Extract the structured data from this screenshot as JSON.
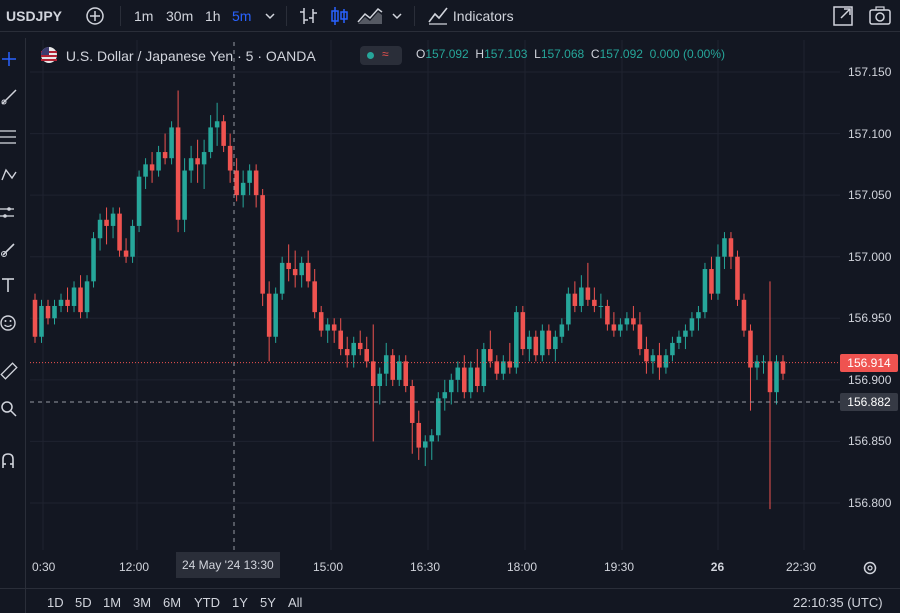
{
  "toolbar": {
    "symbol": "USDJPY",
    "intervals": [
      "1m",
      "30m",
      "1h",
      "5m"
    ],
    "active_interval": "5m",
    "indicators_label": "Indicators"
  },
  "legend": {
    "title": "U.S. Dollar / Japanese Yen · 5 · OANDA",
    "ohlc": {
      "O": "157.092",
      "H": "157.103",
      "L": "157.068",
      "C": "157.092",
      "change": "0.000 (0.00%)"
    }
  },
  "price_axis": {
    "labels": [
      "157.150",
      "157.100",
      "157.050",
      "157.000",
      "156.950",
      "156.900",
      "156.850",
      "156.800"
    ],
    "last_price": "156.914",
    "crosshair_price": "156.882"
  },
  "time_axis": {
    "labels": [
      "0:30",
      "12:00",
      "15:00",
      "16:30",
      "18:00",
      "19:30",
      "26",
      "22:30"
    ],
    "crosshair_label": "24 May '24  13:30"
  },
  "bottom": {
    "ranges": [
      "1D",
      "5D",
      "1M",
      "3M",
      "6M",
      "YTD",
      "1Y",
      "5Y",
      "All"
    ],
    "clock": "22:10:35 (UTC)"
  },
  "colors": {
    "up": "#26a69a",
    "down": "#ef5350",
    "bg": "#131722",
    "grid": "#1f2330",
    "accent": "#2962ff"
  },
  "chart_data": {
    "type": "candlestick",
    "title": "U.S. Dollar / Japanese Yen · 5 · OANDA",
    "ylim": [
      156.78,
      157.17
    ],
    "candles": [
      {
        "o": 156.965,
        "h": 156.97,
        "l": 156.93,
        "c": 156.935
      },
      {
        "o": 156.935,
        "h": 156.965,
        "l": 156.93,
        "c": 156.96
      },
      {
        "o": 156.96,
        "h": 156.965,
        "l": 156.945,
        "c": 156.95
      },
      {
        "o": 156.95,
        "h": 156.965,
        "l": 156.945,
        "c": 156.96
      },
      {
        "o": 156.96,
        "h": 156.97,
        "l": 156.955,
        "c": 156.965
      },
      {
        "o": 156.965,
        "h": 156.975,
        "l": 156.955,
        "c": 156.96
      },
      {
        "o": 156.96,
        "h": 156.98,
        "l": 156.955,
        "c": 156.975
      },
      {
        "o": 156.975,
        "h": 156.985,
        "l": 156.95,
        "c": 156.955
      },
      {
        "o": 156.955,
        "h": 156.985,
        "l": 156.95,
        "c": 156.98
      },
      {
        "o": 156.98,
        "h": 157.02,
        "l": 156.975,
        "c": 157.015
      },
      {
        "o": 157.015,
        "h": 157.035,
        "l": 157.005,
        "c": 157.03
      },
      {
        "o": 157.03,
        "h": 157.04,
        "l": 157.01,
        "c": 157.025
      },
      {
        "o": 157.025,
        "h": 157.04,
        "l": 157.015,
        "c": 157.035
      },
      {
        "o": 157.035,
        "h": 157.04,
        "l": 157.0,
        "c": 157.005
      },
      {
        "o": 157.005,
        "h": 157.015,
        "l": 156.995,
        "c": 157.0
      },
      {
        "o": 157.0,
        "h": 157.03,
        "l": 156.995,
        "c": 157.025
      },
      {
        "o": 157.025,
        "h": 157.07,
        "l": 157.02,
        "c": 157.065
      },
      {
        "o": 157.065,
        "h": 157.08,
        "l": 157.055,
        "c": 157.075
      },
      {
        "o": 157.075,
        "h": 157.085,
        "l": 157.06,
        "c": 157.07
      },
      {
        "o": 157.07,
        "h": 157.09,
        "l": 157.065,
        "c": 157.085
      },
      {
        "o": 157.085,
        "h": 157.1,
        "l": 157.075,
        "c": 157.08
      },
      {
        "o": 157.08,
        "h": 157.11,
        "l": 157.075,
        "c": 157.105
      },
      {
        "o": 157.105,
        "h": 157.135,
        "l": 157.02,
        "c": 157.03
      },
      {
        "o": 157.03,
        "h": 157.08,
        "l": 157.02,
        "c": 157.07
      },
      {
        "o": 157.07,
        "h": 157.09,
        "l": 157.06,
        "c": 157.08
      },
      {
        "o": 157.08,
        "h": 157.095,
        "l": 157.06,
        "c": 157.075
      },
      {
        "o": 157.075,
        "h": 157.095,
        "l": 157.055,
        "c": 157.085
      },
      {
        "o": 157.085,
        "h": 157.115,
        "l": 157.08,
        "c": 157.105
      },
      {
        "o": 157.105,
        "h": 157.125,
        "l": 157.09,
        "c": 157.11
      },
      {
        "o": 157.11,
        "h": 157.115,
        "l": 157.085,
        "c": 157.09
      },
      {
        "o": 157.09,
        "h": 157.1,
        "l": 157.06,
        "c": 157.07
      },
      {
        "o": 157.07,
        "h": 157.08,
        "l": 157.045,
        "c": 157.05
      },
      {
        "o": 157.05,
        "h": 157.07,
        "l": 157.04,
        "c": 157.06
      },
      {
        "o": 157.06,
        "h": 157.075,
        "l": 157.05,
        "c": 157.07
      },
      {
        "o": 157.07,
        "h": 157.075,
        "l": 157.04,
        "c": 157.05
      },
      {
        "o": 157.05,
        "h": 157.055,
        "l": 156.96,
        "c": 156.97
      },
      {
        "o": 156.97,
        "h": 156.98,
        "l": 156.915,
        "c": 156.935
      },
      {
        "o": 156.935,
        "h": 156.975,
        "l": 156.93,
        "c": 156.97
      },
      {
        "o": 156.97,
        "h": 157.0,
        "l": 156.965,
        "c": 156.995
      },
      {
        "o": 156.995,
        "h": 157.01,
        "l": 156.98,
        "c": 156.99
      },
      {
        "o": 156.99,
        "h": 157.005,
        "l": 156.975,
        "c": 156.985
      },
      {
        "o": 156.985,
        "h": 157.0,
        "l": 156.975,
        "c": 156.995
      },
      {
        "o": 156.995,
        "h": 157.005,
        "l": 156.975,
        "c": 156.98
      },
      {
        "o": 156.98,
        "h": 156.99,
        "l": 156.95,
        "c": 156.955
      },
      {
        "o": 156.955,
        "h": 156.96,
        "l": 156.935,
        "c": 156.94
      },
      {
        "o": 156.94,
        "h": 156.95,
        "l": 156.93,
        "c": 156.945
      },
      {
        "o": 156.945,
        "h": 156.95,
        "l": 156.93,
        "c": 156.94
      },
      {
        "o": 156.94,
        "h": 156.95,
        "l": 156.92,
        "c": 156.925
      },
      {
        "o": 156.925,
        "h": 156.935,
        "l": 156.91,
        "c": 156.92
      },
      {
        "o": 156.92,
        "h": 156.935,
        "l": 156.91,
        "c": 156.93
      },
      {
        "o": 156.93,
        "h": 156.94,
        "l": 156.92,
        "c": 156.925
      },
      {
        "o": 156.925,
        "h": 156.935,
        "l": 156.91,
        "c": 156.915
      },
      {
        "o": 156.915,
        "h": 156.945,
        "l": 156.85,
        "c": 156.895
      },
      {
        "o": 156.895,
        "h": 156.91,
        "l": 156.88,
        "c": 156.905
      },
      {
        "o": 156.905,
        "h": 156.93,
        "l": 156.895,
        "c": 156.92
      },
      {
        "o": 156.92,
        "h": 156.925,
        "l": 156.895,
        "c": 156.9
      },
      {
        "o": 156.9,
        "h": 156.92,
        "l": 156.895,
        "c": 156.915
      },
      {
        "o": 156.915,
        "h": 156.92,
        "l": 156.89,
        "c": 156.895
      },
      {
        "o": 156.895,
        "h": 156.9,
        "l": 156.84,
        "c": 156.865
      },
      {
        "o": 156.865,
        "h": 156.875,
        "l": 156.835,
        "c": 156.845
      },
      {
        "o": 156.845,
        "h": 156.855,
        "l": 156.83,
        "c": 156.85
      },
      {
        "o": 156.85,
        "h": 156.86,
        "l": 156.835,
        "c": 156.855
      },
      {
        "o": 156.855,
        "h": 156.89,
        "l": 156.85,
        "c": 156.885
      },
      {
        "o": 156.885,
        "h": 156.9,
        "l": 156.875,
        "c": 156.89
      },
      {
        "o": 156.89,
        "h": 156.905,
        "l": 156.88,
        "c": 156.9
      },
      {
        "o": 156.9,
        "h": 156.915,
        "l": 156.89,
        "c": 156.91
      },
      {
        "o": 156.91,
        "h": 156.92,
        "l": 156.885,
        "c": 156.89
      },
      {
        "o": 156.89,
        "h": 156.915,
        "l": 156.885,
        "c": 156.91
      },
      {
        "o": 156.91,
        "h": 156.925,
        "l": 156.89,
        "c": 156.895
      },
      {
        "o": 156.895,
        "h": 156.93,
        "l": 156.89,
        "c": 156.925
      },
      {
        "o": 156.925,
        "h": 156.94,
        "l": 156.91,
        "c": 156.915
      },
      {
        "o": 156.915,
        "h": 156.92,
        "l": 156.9,
        "c": 156.905
      },
      {
        "o": 156.905,
        "h": 156.92,
        "l": 156.9,
        "c": 156.915
      },
      {
        "o": 156.915,
        "h": 156.93,
        "l": 156.905,
        "c": 156.91
      },
      {
        "o": 156.91,
        "h": 156.96,
        "l": 156.905,
        "c": 156.955
      },
      {
        "o": 156.955,
        "h": 156.96,
        "l": 156.92,
        "c": 156.925
      },
      {
        "o": 156.925,
        "h": 156.94,
        "l": 156.915,
        "c": 156.935
      },
      {
        "o": 156.935,
        "h": 156.94,
        "l": 156.915,
        "c": 156.92
      },
      {
        "o": 156.92,
        "h": 156.945,
        "l": 156.915,
        "c": 156.94
      },
      {
        "o": 156.94,
        "h": 156.945,
        "l": 156.92,
        "c": 156.925
      },
      {
        "o": 156.925,
        "h": 156.94,
        "l": 156.915,
        "c": 156.935
      },
      {
        "o": 156.935,
        "h": 156.95,
        "l": 156.93,
        "c": 156.945
      },
      {
        "o": 156.945,
        "h": 156.975,
        "l": 156.94,
        "c": 156.97
      },
      {
        "o": 156.97,
        "h": 156.98,
        "l": 156.955,
        "c": 156.96
      },
      {
        "o": 156.96,
        "h": 156.985,
        "l": 156.955,
        "c": 156.975
      },
      {
        "o": 156.975,
        "h": 156.995,
        "l": 156.96,
        "c": 156.965
      },
      {
        "o": 156.965,
        "h": 156.975,
        "l": 156.955,
        "c": 156.96
      },
      {
        "o": 156.96,
        "h": 156.97,
        "l": 156.95,
        "c": 156.96
      },
      {
        "o": 156.96,
        "h": 156.965,
        "l": 156.94,
        "c": 156.945
      },
      {
        "o": 156.945,
        "h": 156.955,
        "l": 156.935,
        "c": 156.94
      },
      {
        "o": 156.94,
        "h": 156.95,
        "l": 156.935,
        "c": 156.945
      },
      {
        "o": 156.945,
        "h": 156.955,
        "l": 156.94,
        "c": 156.95
      },
      {
        "o": 156.95,
        "h": 156.96,
        "l": 156.94,
        "c": 156.945
      },
      {
        "o": 156.945,
        "h": 156.955,
        "l": 156.92,
        "c": 156.925
      },
      {
        "o": 156.925,
        "h": 156.935,
        "l": 156.905,
        "c": 156.915
      },
      {
        "o": 156.915,
        "h": 156.925,
        "l": 156.905,
        "c": 156.92
      },
      {
        "o": 156.92,
        "h": 156.93,
        "l": 156.9,
        "c": 156.91
      },
      {
        "o": 156.91,
        "h": 156.925,
        "l": 156.905,
        "c": 156.92
      },
      {
        "o": 156.92,
        "h": 156.935,
        "l": 156.915,
        "c": 156.93
      },
      {
        "o": 156.93,
        "h": 156.94,
        "l": 156.925,
        "c": 156.935
      },
      {
        "o": 156.935,
        "h": 156.945,
        "l": 156.925,
        "c": 156.94
      },
      {
        "o": 156.94,
        "h": 156.955,
        "l": 156.935,
        "c": 156.95
      },
      {
        "o": 156.95,
        "h": 156.96,
        "l": 156.94,
        "c": 156.955
      },
      {
        "o": 156.955,
        "h": 156.995,
        "l": 156.95,
        "c": 156.99
      },
      {
        "o": 156.99,
        "h": 157.0,
        "l": 156.965,
        "c": 156.97
      },
      {
        "o": 156.97,
        "h": 157.01,
        "l": 156.965,
        "c": 157.0
      },
      {
        "o": 157.0,
        "h": 157.02,
        "l": 156.99,
        "c": 157.015
      },
      {
        "o": 157.015,
        "h": 157.02,
        "l": 156.99,
        "c": 157.0
      },
      {
        "o": 157.0,
        "h": 157.005,
        "l": 156.96,
        "c": 156.965
      },
      {
        "o": 156.965,
        "h": 156.97,
        "l": 156.935,
        "c": 156.94
      },
      {
        "o": 156.94,
        "h": 156.945,
        "l": 156.875,
        "c": 156.91
      },
      {
        "o": 156.91,
        "h": 156.92,
        "l": 156.9,
        "c": 156.915
      },
      {
        "o": 156.915,
        "h": 156.92,
        "l": 156.905,
        "c": 156.915
      },
      {
        "o": 156.915,
        "h": 156.98,
        "l": 156.795,
        "c": 156.89
      },
      {
        "o": 156.89,
        "h": 156.92,
        "l": 156.88,
        "c": 156.915
      },
      {
        "o": 156.915,
        "h": 156.92,
        "l": 156.9,
        "c": 156.905
      }
    ]
  }
}
